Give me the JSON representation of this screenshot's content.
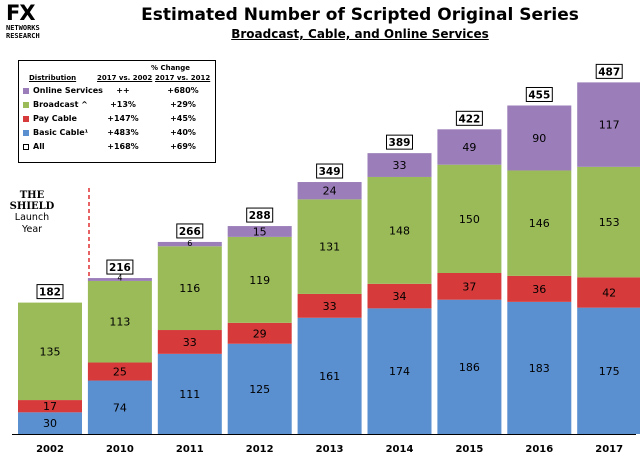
{
  "logo": {
    "mark": "FX",
    "line1": "NETWORKS",
    "line2": "RESEARCH"
  },
  "title": "Estimated Number of Scripted Original Series",
  "subtitle": "Broadcast, Cable, and Online Services",
  "legend": {
    "header_pct": "% Change",
    "col_distribution": "Distribution",
    "col_2002": "2017 vs. 2002",
    "col_2012": "2017 vs. 2012",
    "rows": [
      {
        "name": "Online Services",
        "v1": "++",
        "v2": "+680%",
        "color": "#9b7eb9"
      },
      {
        "name": "Broadcast ^",
        "v1": "+13%",
        "v2": "+29%",
        "color": "#9bbb59"
      },
      {
        "name": "Pay Cable",
        "v1": "+147%",
        "v2": "+45%",
        "color": "#d63a3a"
      },
      {
        "name": "Basic Cable¹",
        "v1": "+483%",
        "v2": "+40%",
        "color": "#5a8fd0"
      },
      {
        "name": "All",
        "v1": "+168%",
        "v2": "+69%",
        "color": "#ffffff"
      }
    ]
  },
  "annotation": {
    "title": "THE SHIELD",
    "line1": "Launch",
    "line2": "Year"
  },
  "chart_data": {
    "type": "bar",
    "stacked": true,
    "title": "Estimated Number of Scripted Original Series",
    "subtitle": "Broadcast, Cable, and Online Services",
    "categories": [
      "2002",
      "2010",
      "2011",
      "2012",
      "2013",
      "2014",
      "2015",
      "2016",
      "2017"
    ],
    "series": [
      {
        "name": "Basic Cable",
        "color": "#5a8fd0",
        "values": [
          30,
          74,
          111,
          125,
          161,
          174,
          186,
          183,
          175
        ]
      },
      {
        "name": "Pay Cable",
        "color": "#d63a3a",
        "values": [
          17,
          25,
          33,
          29,
          33,
          34,
          37,
          36,
          42
        ]
      },
      {
        "name": "Broadcast",
        "color": "#9bbb59",
        "values": [
          135,
          113,
          116,
          119,
          131,
          148,
          150,
          146,
          153
        ]
      },
      {
        "name": "Online Services",
        "color": "#9b7eb9",
        "values": [
          0,
          4,
          6,
          15,
          24,
          33,
          49,
          90,
          117
        ]
      }
    ],
    "totals": [
      182,
      216,
      266,
      288,
      349,
      389,
      422,
      455,
      487
    ],
    "ylim": [
      0,
      500
    ],
    "grid": false,
    "xlabel": "",
    "ylabel": ""
  }
}
